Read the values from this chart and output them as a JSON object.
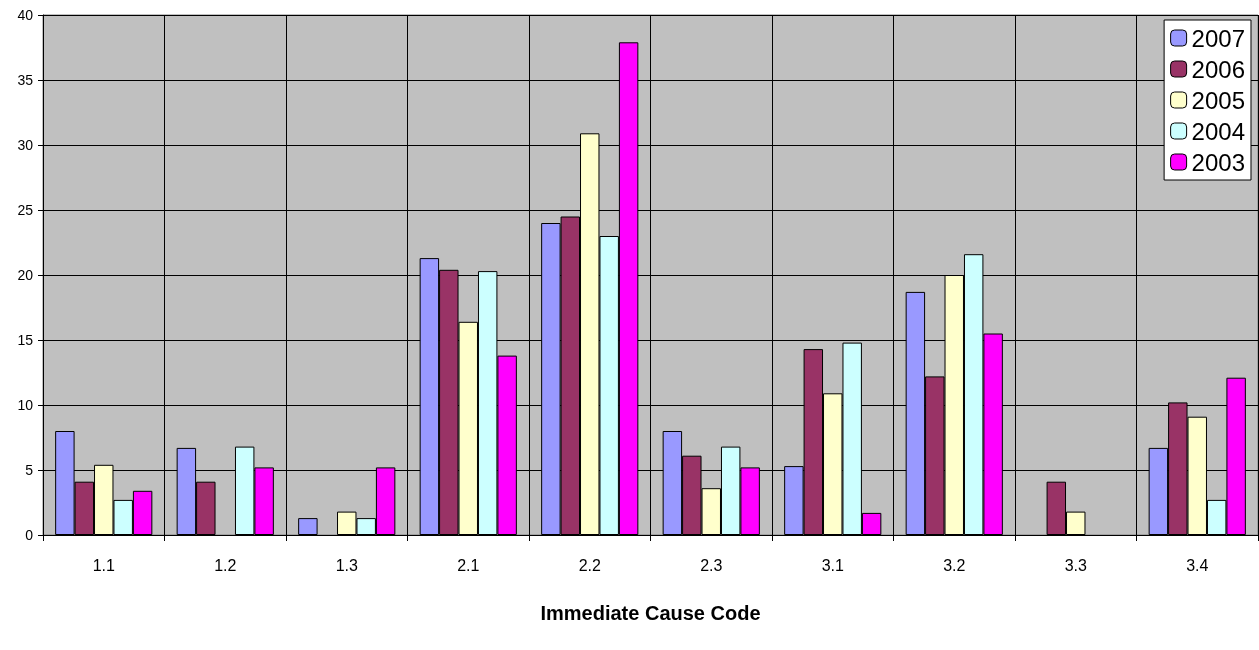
{
  "chart_data": {
    "type": "bar",
    "xlabel": "Immediate Cause Code",
    "categories": [
      "1.1",
      "1.2",
      "1.3",
      "2.1",
      "2.2",
      "2.3",
      "3.1",
      "3.2",
      "3.3",
      "3.4"
    ],
    "series": [
      {
        "name": "2007",
        "color": "#9999ff",
        "values": [
          8,
          6.7,
          1.3,
          21.3,
          24,
          8,
          5.3,
          18.7,
          null,
          6.7
        ]
      },
      {
        "name": "2006",
        "color": "#993366",
        "values": [
          4.1,
          4.1,
          null,
          20.4,
          24.5,
          6.1,
          14.3,
          12.2,
          4.1,
          10.2
        ]
      },
      {
        "name": "2005",
        "color": "#ffffcc",
        "values": [
          5.4,
          null,
          1.8,
          16.4,
          30.9,
          3.6,
          10.9,
          20,
          1.8,
          9.1
        ]
      },
      {
        "name": "2004",
        "color": "#ccffff",
        "values": [
          2.7,
          6.8,
          1.3,
          20.3,
          23,
          6.8,
          14.8,
          21.6,
          null,
          2.7
        ]
      },
      {
        "name": "2003",
        "color": "#ff00ff",
        "values": [
          3.4,
          5.2,
          5.2,
          13.8,
          37.9,
          5.2,
          1.7,
          15.5,
          null,
          12.1
        ]
      }
    ],
    "ylim": [
      0,
      40
    ],
    "yticks": [
      0,
      5,
      10,
      15,
      20,
      25,
      30,
      35,
      40
    ],
    "grid": true,
    "legend": "top right"
  }
}
